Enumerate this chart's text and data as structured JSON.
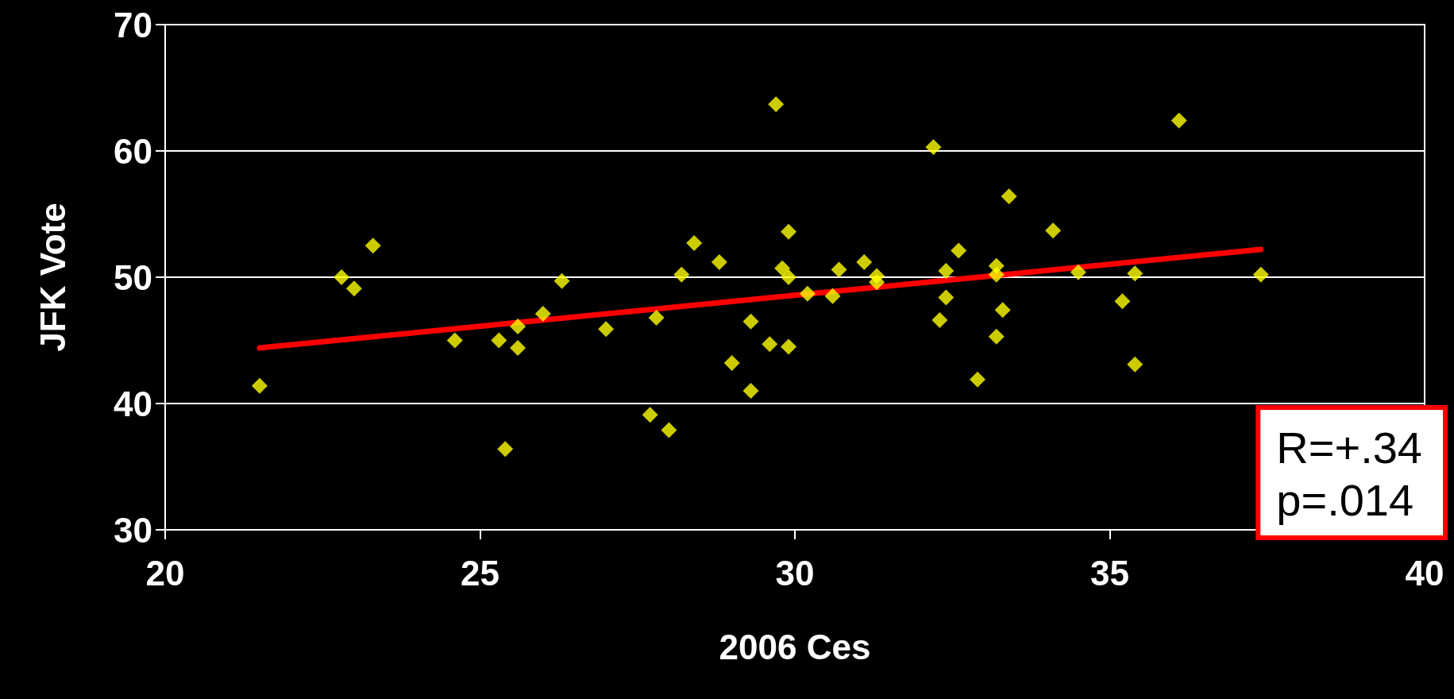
{
  "chart_data": {
    "type": "scatter",
    "xlabel": "2006 Ces",
    "ylabel": "JFK Vote",
    "xlim": [
      20,
      40
    ],
    "xticks": [
      20,
      25,
      30,
      35,
      40
    ],
    "ylim": [
      30,
      70
    ],
    "yticks": [
      30,
      40,
      50,
      60,
      70
    ],
    "grid": "y",
    "annotations": [
      "R=+.34\np=.014"
    ],
    "series": [
      {
        "color": "#ffff00",
        "marker": "diamond",
        "x": [
          21.5,
          22.8,
          23.0,
          23.3,
          24.6,
          25.3,
          25.4,
          25.6,
          25.6,
          26.0,
          26.3,
          27.0,
          27.8,
          27.7,
          28.0,
          28.2,
          28.4,
          28.8,
          29.0,
          29.3,
          29.3,
          29.6,
          29.7,
          29.8,
          29.9,
          29.9,
          29.9,
          30.2,
          30.6,
          30.7,
          31.1,
          31.3,
          31.3,
          32.2,
          32.3,
          32.4,
          32.4,
          32.6,
          32.9,
          33.2,
          33.2,
          33.3,
          33.2,
          33.4,
          34.1,
          34.5,
          35.4,
          35.2,
          35.4,
          36.1,
          37.4
        ],
        "values": [
          41.4,
          50.0,
          49.1,
          52.5,
          45.0,
          45.0,
          36.4,
          44.4,
          46.1,
          47.1,
          49.7,
          45.9,
          46.8,
          39.1,
          37.9,
          50.2,
          52.7,
          51.2,
          43.2,
          46.5,
          41.0,
          44.7,
          63.7,
          50.7,
          53.6,
          50.0,
          44.5,
          48.7,
          48.5,
          50.6,
          51.2,
          50.1,
          49.6,
          60.3,
          46.6,
          50.5,
          48.4,
          52.1,
          41.9,
          50.9,
          50.2,
          47.4,
          45.3,
          56.4,
          53.7,
          50.4,
          50.3,
          48.1,
          43.1,
          62.4,
          50.2
        ]
      },
      {
        "type": "line",
        "color": "#ff0000",
        "marker": "none",
        "x": [
          21.5,
          37.4
        ],
        "values": [
          44.4,
          52.2
        ]
      }
    ]
  }
}
